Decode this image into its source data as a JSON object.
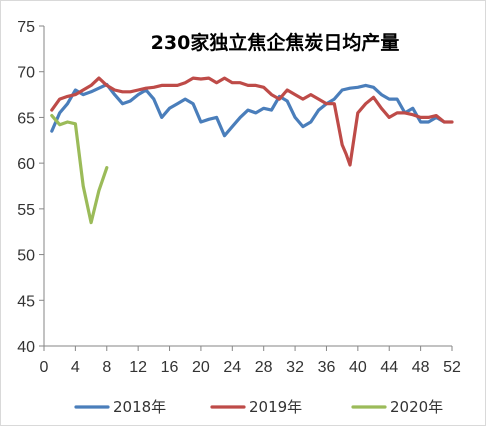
{
  "chart_data": {
    "type": "line",
    "title": "230家独立焦企焦炭日均产量",
    "xlabel": "",
    "ylabel": "",
    "xlim": [
      0,
      52
    ],
    "ylim": [
      40,
      75
    ],
    "x_ticks": [
      "0",
      "4",
      "8",
      "12",
      "16",
      "20",
      "24",
      "28",
      "32",
      "36",
      "40",
      "44",
      "48",
      "52"
    ],
    "y_ticks": [
      "40",
      "45",
      "50",
      "55",
      "60",
      "65",
      "70",
      "75"
    ],
    "grid": false,
    "legend_position": "bottom",
    "series": [
      {
        "name": "2018年",
        "color": "#4a7ebb",
        "x": [
          1,
          2,
          3,
          4,
          5,
          6,
          7,
          8,
          9,
          10,
          11,
          12,
          13,
          14,
          15,
          16,
          17,
          18,
          19,
          20,
          21,
          22,
          23,
          24,
          25,
          26,
          27,
          28,
          29,
          30,
          31,
          32,
          33,
          34,
          35,
          36,
          37,
          38,
          39,
          40,
          41,
          42,
          43,
          44,
          45,
          46,
          47,
          48,
          49,
          50,
          51
        ],
        "y": [
          63.5,
          65.5,
          66.5,
          68.0,
          67.5,
          67.8,
          68.2,
          68.6,
          67.5,
          66.5,
          66.8,
          67.5,
          68.0,
          67.0,
          65.0,
          66.0,
          66.5,
          67.0,
          66.5,
          64.5,
          64.8,
          65.0,
          63.0,
          64.0,
          65.0,
          65.8,
          65.5,
          66.0,
          65.8,
          67.3,
          66.8,
          65.0,
          64.0,
          64.5,
          65.8,
          66.5,
          67.0,
          68.0,
          68.2,
          68.3,
          68.5,
          68.3,
          67.5,
          67.0,
          67.0,
          65.5,
          66.0,
          64.5,
          64.5,
          65.0,
          64.5
        ]
      },
      {
        "name": "2019年",
        "color": "#be4b48",
        "x": [
          1,
          2,
          3,
          4,
          5,
          6,
          7,
          8,
          9,
          10,
          11,
          12,
          13,
          14,
          15,
          16,
          17,
          18,
          19,
          20,
          21,
          22,
          23,
          24,
          25,
          26,
          27,
          28,
          29,
          30,
          31,
          32,
          33,
          34,
          35,
          36,
          37,
          38,
          38.5,
          39,
          40,
          41,
          42,
          43,
          44,
          45,
          46,
          47,
          48,
          49,
          50,
          51,
          52
        ],
        "y": [
          65.8,
          67.0,
          67.3,
          67.5,
          68.0,
          68.5,
          69.3,
          68.5,
          68.0,
          67.8,
          67.8,
          68.0,
          68.2,
          68.3,
          68.5,
          68.5,
          68.5,
          68.8,
          69.3,
          69.2,
          69.3,
          68.8,
          69.3,
          68.8,
          68.8,
          68.5,
          68.5,
          68.3,
          67.5,
          67.0,
          68.0,
          67.5,
          67.0,
          67.5,
          67.0,
          66.5,
          66.5,
          62.0,
          61.0,
          59.8,
          65.5,
          66.5,
          67.2,
          66.0,
          65.0,
          65.5,
          65.5,
          65.3,
          65.0,
          65.0,
          65.2,
          64.5,
          64.5
        ]
      },
      {
        "name": "2020年",
        "color": "#9bbb59",
        "x": [
          1,
          2,
          3,
          4,
          5,
          6,
          7,
          8
        ],
        "y": [
          65.2,
          64.2,
          64.5,
          64.3,
          57.5,
          53.5,
          57.0,
          59.5
        ]
      }
    ]
  }
}
